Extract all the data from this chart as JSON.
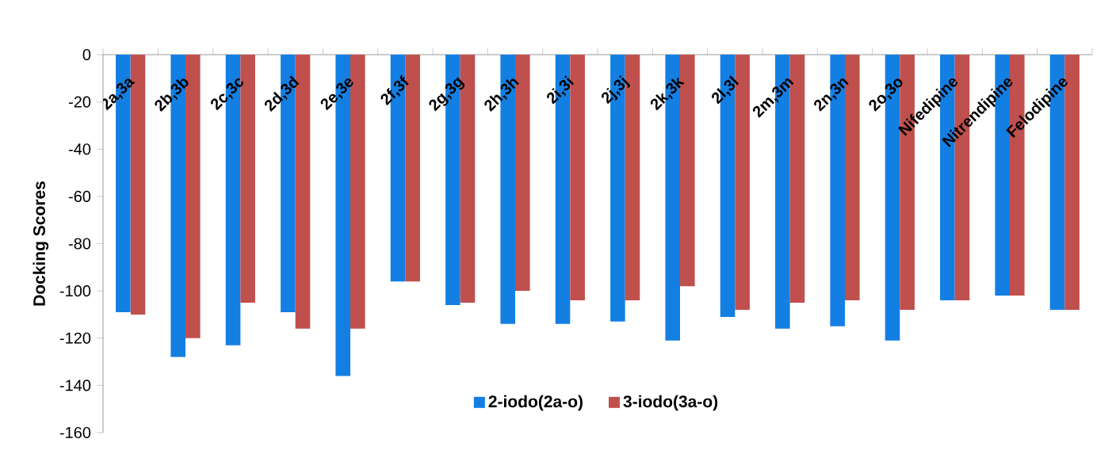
{
  "chart_data": {
    "type": "bar",
    "ylabel": "Docking Scores",
    "categories": [
      "2a,3a",
      "2b,3b",
      "2c,3c",
      "2d,3d",
      "2e,3e",
      "2f,3f",
      "2g,3g",
      "2h,3h",
      "2i,3i",
      "2j,3j",
      "2k,3k",
      "2l,3l",
      "2m,3m",
      "2n,3n",
      "2o,3o",
      "Nifedipine",
      "Nitrendipine",
      "Felodipine"
    ],
    "series": [
      {
        "name": "2-iodo(2a-o)",
        "color": "#137fe3",
        "values": [
          -109,
          -128,
          -123,
          -109,
          -136,
          -96,
          -106,
          -114,
          -114,
          -113,
          -121,
          -111,
          -116,
          -115,
          -121,
          -104,
          -102,
          -108
        ]
      },
      {
        "name": "3-iodo(3a-o)",
        "color": "#c0504d",
        "values": [
          -110,
          -120,
          -105,
          -116,
          -116,
          -96,
          -105,
          -100,
          -104,
          -104,
          -98,
          -108,
          -105,
          -104,
          -108,
          -104,
          -102,
          -108
        ]
      }
    ],
    "ylim": [
      -160,
      0
    ],
    "yticks": [
      -160,
      -140,
      -120,
      -100,
      -80,
      -60,
      -40,
      -20,
      0
    ],
    "legend": "bottom"
  }
}
